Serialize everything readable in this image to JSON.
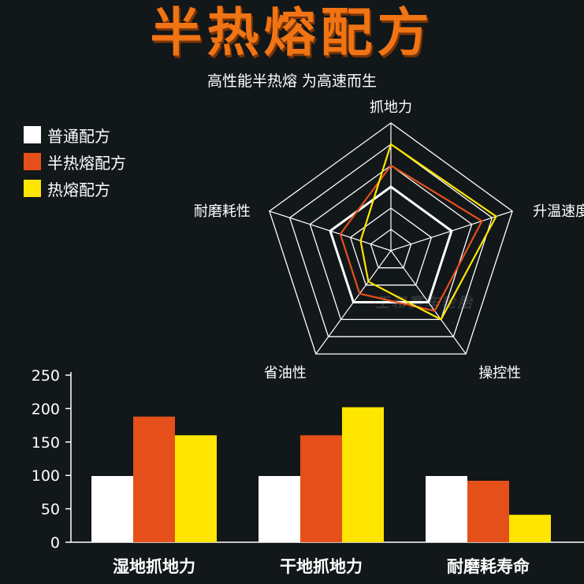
{
  "header": {
    "title": "半热熔配方",
    "subtitle": "高性能半热熔 为高速而生"
  },
  "legend": [
    {
      "label": "普通配方",
      "color": "#ffffff"
    },
    {
      "label": "半热熔配方",
      "color": "#e5501a"
    },
    {
      "label": "热熔配方",
      "color": "#ffe600"
    }
  ],
  "watermark": "王和赛车轮胎",
  "chart_data": [
    {
      "type": "radar",
      "axes": [
        "抓地力",
        "升温速度",
        "操控性",
        "省油性",
        "耐磨耗性"
      ],
      "rings": 6,
      "max": 6,
      "grid": true,
      "series": [
        {
          "name": "普通配方",
          "color": "#ffffff",
          "values": [
            3,
            3,
            3,
            3,
            3
          ]
        },
        {
          "name": "半热熔配方",
          "color": "#e5501a",
          "values": [
            4,
            4.5,
            3.5,
            2.5,
            2.5
          ]
        },
        {
          "name": "热熔配方",
          "color": "#ffe600",
          "values": [
            5,
            5.2,
            4,
            1.8,
            1.5
          ]
        }
      ]
    },
    {
      "type": "bar",
      "categories": [
        "湿地抓地力",
        "干地抓地力",
        "耐磨耗寿命"
      ],
      "series": [
        {
          "name": "普通配方",
          "color": "#ffffff",
          "values": [
            99,
            99,
            99
          ]
        },
        {
          "name": "半热熔配方",
          "color": "#e5501a",
          "values": [
            188,
            160,
            92
          ]
        },
        {
          "name": "热熔配方",
          "color": "#ffe600",
          "values": [
            160,
            202,
            41
          ]
        }
      ],
      "ylim": [
        0,
        250
      ],
      "yticks": [
        0,
        50,
        100,
        150,
        200,
        250
      ],
      "xlabel": "",
      "ylabel": "",
      "grid": false
    }
  ]
}
